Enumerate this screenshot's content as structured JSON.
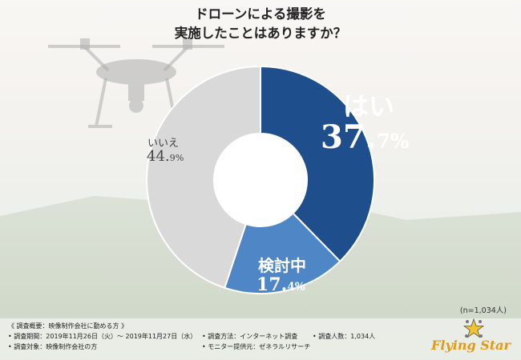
{
  "title": {
    "line1": "ドローンによる撮影を",
    "line2": "実施したことはありますか？"
  },
  "chart_data": {
    "type": "pie",
    "categories": [
      "はい",
      "検討中",
      "いいえ"
    ],
    "values": [
      37.7,
      17.4,
      44.9
    ],
    "unit": "%",
    "colors": [
      "#1f4e8c",
      "#4f86c6",
      "#d9d9d9"
    ]
  },
  "labels": {
    "yes": {
      "name": "はい",
      "value_int": "37.",
      "value_dec": "7%"
    },
    "considering": {
      "name": "検討中",
      "value_int": "17.",
      "value_dec": "4%"
    },
    "no": {
      "name": "いいえ",
      "value_int": "44.",
      "value_dec": "9%"
    }
  },
  "sample_size": "(n=1,034人)",
  "survey": {
    "heading": "《 調査概要：映像制作会社に勤める方 》",
    "period": "• 調査期間：2019年11月26日（火）～ 2019年11月27日（水）",
    "target": "• 調査対象：映像制作会社の方",
    "method": "• 調査方法：インターネット調査",
    "respondents": "• 調査人数：1,034人",
    "provider": "• モニター提供元：ゼネラルリサーチ"
  },
  "logo": {
    "text": "Flying Star",
    "icon": "star-icon"
  }
}
